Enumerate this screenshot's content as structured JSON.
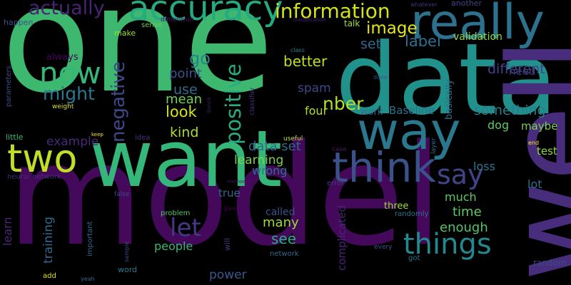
{
  "word_cloud": {
    "background": "#000000",
    "colormap": "viridis",
    "words": [
      {
        "text": "one",
        "color": "#3fb86f"
      },
      {
        "text": "model",
        "color": "#44095a"
      },
      {
        "text": "data",
        "color": "#21918c"
      },
      {
        "text": "well",
        "color": "#472d7b"
      },
      {
        "text": "want",
        "color": "#35b779"
      },
      {
        "text": "way",
        "color": "#2a788e"
      },
      {
        "text": "really",
        "color": "#2c728e"
      },
      {
        "text": "accuracy",
        "color": "#25ab82"
      },
      {
        "text": "think",
        "color": "#3b518b"
      },
      {
        "text": "two",
        "color": "#c2df23"
      },
      {
        "text": "now",
        "color": "#35b779"
      },
      {
        "text": "things",
        "color": "#23898e"
      },
      {
        "text": "say",
        "color": "#414487"
      },
      {
        "text": "information",
        "color": "#d2e21b"
      },
      {
        "text": "actually",
        "color": "#482475"
      },
      {
        "text": "negative",
        "color": "#3e4989"
      },
      {
        "text": "positive",
        "color": "#27ad81"
      },
      {
        "text": "let",
        "color": "#443983"
      },
      {
        "text": "image",
        "color": "#e5e419"
      },
      {
        "text": "might",
        "color": "#2a788e"
      },
      {
        "text": "go",
        "color": "#26828e"
      },
      {
        "text": "nber",
        "color": "#b5de2b"
      },
      {
        "text": "something",
        "color": "#287d8e"
      },
      {
        "text": "different",
        "color": "#414487"
      },
      {
        "text": "label",
        "color": "#2d708e"
      },
      {
        "text": "set",
        "color": "#31688e"
      },
      {
        "text": "validation",
        "color": "#8fd744"
      },
      {
        "text": "better",
        "color": "#bddf26"
      },
      {
        "text": "point",
        "color": "#3b528b"
      },
      {
        "text": "use",
        "color": "#2f6c8e"
      },
      {
        "text": "mean",
        "color": "#73d056"
      },
      {
        "text": "look",
        "color": "#d8e219"
      },
      {
        "text": "kind",
        "color": "#addc30"
      },
      {
        "text": "spam",
        "color": "#3e4989"
      },
      {
        "text": "four",
        "color": "#b5de2b"
      },
      {
        "text": "dog",
        "color": "#5ec962"
      },
      {
        "text": "maybe",
        "color": "#7ad151"
      },
      {
        "text": "need",
        "color": "#443983"
      },
      {
        "text": "test",
        "color": "#8fd744"
      },
      {
        "text": "example",
        "color": "#482878"
      },
      {
        "text": "data set",
        "color": "#31688e"
      },
      {
        "text": "learning",
        "color": "#7ad151"
      },
      {
        "text": "wrong",
        "color": "#2c728e"
      },
      {
        "text": "true",
        "color": "#31688e"
      },
      {
        "text": "many",
        "color": "#9bd93c"
      },
      {
        "text": "see",
        "color": "#27ad81"
      },
      {
        "text": "time",
        "color": "#5ec962"
      },
      {
        "text": "much",
        "color": "#5ec962"
      },
      {
        "text": "enough",
        "color": "#52c569"
      },
      {
        "text": "loss",
        "color": "#2a788e"
      },
      {
        "text": "lot",
        "color": "#2c728e"
      },
      {
        "text": "learn",
        "color": "#482878"
      },
      {
        "text": "training",
        "color": "#31688e"
      },
      {
        "text": "people",
        "color": "#35b779"
      },
      {
        "text": "power",
        "color": "#38598c"
      },
      {
        "text": "called",
        "color": "#3b528b"
      },
      {
        "text": "complicated",
        "color": "#482475"
      },
      {
        "text": "three",
        "color": "#a2da37"
      },
      {
        "text": "random",
        "color": "#3e4989"
      },
      {
        "text": "Baseline",
        "color": "#2d708e"
      },
      {
        "text": "basically",
        "color": "#2f6c8e"
      },
      {
        "text": "work",
        "color": "#2f6c8e"
      },
      {
        "text": "always",
        "color": "#450457"
      },
      {
        "text": "happen",
        "color": "#3b528b"
      },
      {
        "text": "make",
        "color": "#a2da37"
      },
      {
        "text": "sense",
        "color": "#6ccd5a"
      },
      {
        "text": "talk",
        "color": "#a8db34"
      },
      {
        "text": "another",
        "color": "#404588"
      },
      {
        "text": "whatever",
        "color": "#46327e"
      },
      {
        "text": "dimension",
        "color": "#481668"
      },
      {
        "text": "classification",
        "color": "#482173"
      },
      {
        "text": "class",
        "color": "#26828e"
      },
      {
        "text": "parameters",
        "color": "#3e4989"
      },
      {
        "text": "weight",
        "color": "#d8e219"
      },
      {
        "text": "little",
        "color": "#35b779"
      },
      {
        "text": "keep",
        "color": "#fde725"
      },
      {
        "text": "idea",
        "color": "#46327e"
      },
      {
        "text": "useful",
        "color": "#b5de2b"
      },
      {
        "text": "case",
        "color": "#481668"
      },
      {
        "text": "neural network",
        "color": "#472d7b"
      },
      {
        "text": "memorize",
        "color": "#470e61"
      },
      {
        "text": "error",
        "color": "#443983"
      },
      {
        "text": "false",
        "color": "#3e4989"
      },
      {
        "text": "give",
        "color": "#440154"
      },
      {
        "text": "problem",
        "color": "#52c569"
      },
      {
        "text": "important",
        "color": "#2f6c8e"
      },
      {
        "text": "will",
        "color": "#46327e"
      },
      {
        "text": "network",
        "color": "#31688e"
      },
      {
        "text": "randomly",
        "color": "#2c728e"
      },
      {
        "text": "every",
        "color": "#3b528b"
      },
      {
        "text": "got",
        "color": "#2c728e"
      },
      {
        "text": "sample",
        "color": "#3e4989"
      },
      {
        "text": "word",
        "color": "#2a788e"
      },
      {
        "text": "add",
        "color": "#dde318"
      },
      {
        "text": "yeah",
        "color": "#31688e"
      },
      {
        "text": "bunch",
        "color": "#481f70"
      },
      {
        "text": "classifier",
        "color": "#472f7d"
      },
      {
        "text": "done",
        "color": "#3b528b"
      },
      {
        "text": "end",
        "color": "#fde725"
      },
      {
        "text": "layer",
        "color": "#31688e"
      }
    ]
  }
}
